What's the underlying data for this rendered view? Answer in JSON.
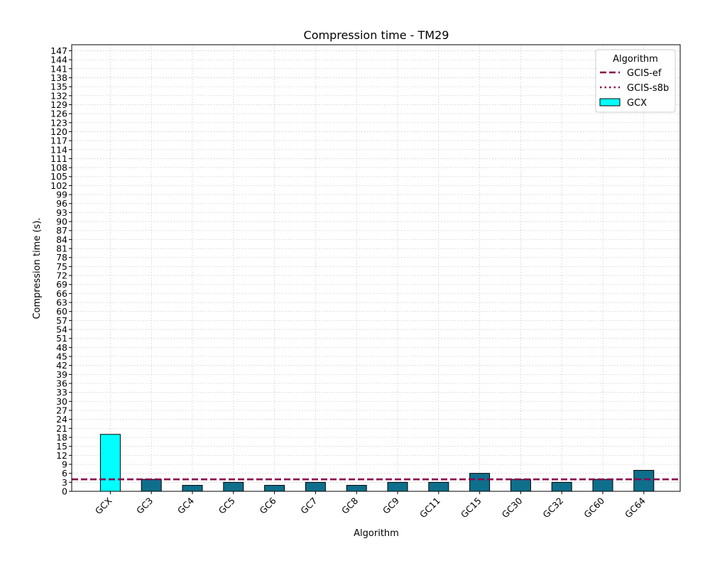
{
  "chart_data": {
    "type": "bar",
    "title": "Compression time -  TM29",
    "xlabel": "Algorithm",
    "ylabel": "Compression time (s).",
    "categories": [
      "GCX",
      "GC3",
      "GC4",
      "GC5",
      "GC6",
      "GC7",
      "GC8",
      "GC9",
      "GC11",
      "GC15",
      "GC30",
      "GC32",
      "GC60",
      "GC64"
    ],
    "values": [
      19,
      4,
      2,
      3,
      2,
      3,
      2,
      3,
      3,
      6,
      4,
      3,
      4,
      7
    ],
    "ylim": [
      0,
      149
    ],
    "ytick_step": 3,
    "grid": true,
    "reference_lines": [
      {
        "name": "GCIS-ef",
        "value": 4,
        "style": "dashed",
        "color": "#8b004b"
      },
      {
        "name": "GCIS-s8b",
        "value": 4,
        "style": "dotted",
        "color": "#8b004b"
      }
    ],
    "highlight": {
      "name": "GCX",
      "color": "#00ffff"
    },
    "bar_color": "#0e6f8c",
    "legend": {
      "title": "Algorithm",
      "placement": "top-right",
      "entries": [
        "GCIS-ef",
        "GCIS-s8b",
        "GCX"
      ]
    }
  }
}
